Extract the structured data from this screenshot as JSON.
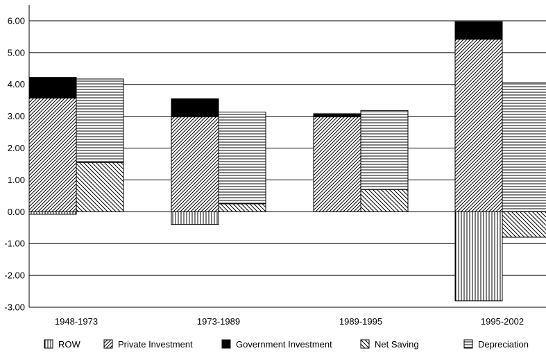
{
  "chart_data": {
    "type": "bar",
    "stacked": true,
    "grouped": true,
    "title": "",
    "xlabel": "",
    "ylabel": "",
    "ylim": [
      -3.0,
      6.5
    ],
    "yticks": [
      -3.0,
      -2.0,
      -1.0,
      0.0,
      1.0,
      2.0,
      3.0,
      4.0,
      5.0,
      6.0
    ],
    "ytick_labels": [
      "-3.00",
      "-2.00",
      "-1.00",
      "0.00",
      "1.00",
      "2.00",
      "3.00",
      "4.00",
      "5.00",
      "6.00"
    ],
    "grid": "horizontal",
    "legend_position": "bottom",
    "categories": [
      "1948-1973",
      "1973-1989",
      "1989-1995",
      "1995-2002"
    ],
    "stacks": {
      "left": [
        "ROW",
        "Private Investment",
        "Government Investment"
      ],
      "right": [
        "Net Saving",
        "Depreciation"
      ]
    },
    "series": [
      {
        "name": "ROW",
        "stack": "left",
        "pattern": "vertical",
        "values": [
          -0.08,
          -0.4,
          0.0,
          -2.8
        ]
      },
      {
        "name": "Private Investment",
        "stack": "left",
        "pattern": "diagonal",
        "values": [
          3.57,
          2.98,
          2.98,
          5.42
        ]
      },
      {
        "name": "Government Investment",
        "stack": "left",
        "pattern": "solid",
        "values": [
          0.65,
          0.57,
          0.1,
          0.55
        ]
      },
      {
        "name": "Net Saving",
        "stack": "right",
        "pattern": "antidiagonal",
        "values": [
          1.55,
          0.25,
          0.7,
          -0.8
        ]
      },
      {
        "name": "Depreciation",
        "stack": "right",
        "pattern": "horizontal",
        "values": [
          2.62,
          2.88,
          2.48,
          4.05
        ]
      }
    ]
  }
}
